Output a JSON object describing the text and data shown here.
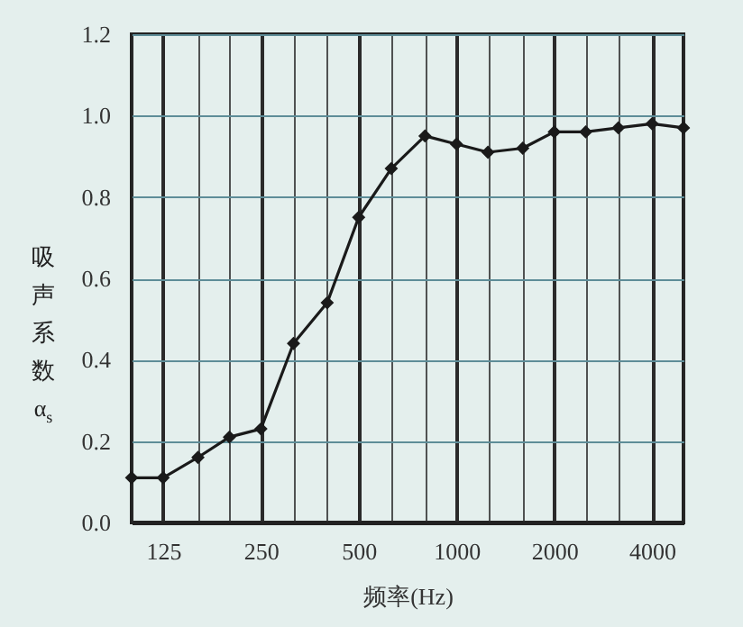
{
  "chart_data": {
    "type": "line",
    "xlabel": "频率(Hz)",
    "ylabel": "吸声系数α$_{s}$",
    "x": [
      100,
      125,
      160,
      200,
      250,
      315,
      400,
      500,
      630,
      800,
      1000,
      1250,
      1600,
      2000,
      2500,
      3150,
      4000,
      5000
    ],
    "series": [
      {
        "color": "#1a1a1a",
        "values": [
          0.11,
          0.11,
          0.16,
          0.21,
          0.23,
          0.44,
          0.54,
          0.75,
          0.87,
          0.95,
          0.93,
          0.91,
          0.92,
          0.96,
          0.96,
          0.97,
          0.98,
          0.97
        ]
      }
    ],
    "log": "x",
    "xlim": [
      100,
      5000
    ],
    "xticks": [
      {
        "value": 100,
        "label": null
      },
      "125",
      {
        "value": 160,
        "label": null
      },
      {
        "value": 200,
        "label": null
      },
      250,
      {
        "value": 315,
        "label": null
      },
      {
        "value": 400,
        "label": null
      },
      500,
      {
        "value": 630,
        "label": null
      },
      {
        "value": 800,
        "label": null
      },
      1000,
      {
        "value": 1250,
        "label": null
      },
      {
        "value": 1600,
        "label": null
      },
      2000,
      {
        "value": 2500,
        "label": null
      },
      {
        "value": 3150,
        "label": null
      },
      4000,
      {
        "value": 5000,
        "label": null
      }
    ],
    "ylim": [
      0,
      1.2
    ],
    "yticks": [
      {
        "value": 0,
        "label": "0.0"
      },
      0.2,
      0.4,
      0.6,
      0.8,
      {
        "value": 1,
        "label": "1.0"
      },
      1.2
    ],
    "grid": true,
    "marker": "diamond",
    "line_style": "solid"
  }
}
